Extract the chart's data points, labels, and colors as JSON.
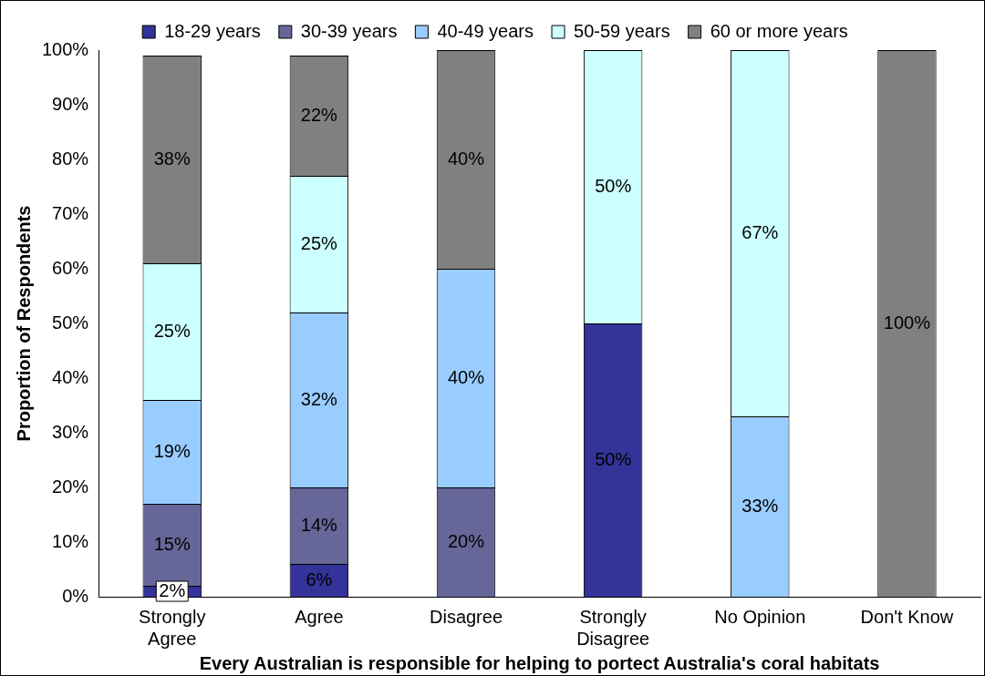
{
  "chart_data": {
    "type": "bar",
    "stacked": true,
    "xlabel": "Every Australian is responsible for helping to portect Australia's coral habitats",
    "ylabel": "Proportion of Respondents",
    "categories": [
      "Strongly Agree",
      "Agree",
      "Disagree",
      "Strongly Disagree",
      "No Opinion",
      "Don't Know"
    ],
    "series": [
      {
        "name": "18-29 years",
        "color": "#333399",
        "values": [
          2,
          6,
          null,
          50,
          null,
          null
        ],
        "value_labels": [
          "2%",
          "6%",
          null,
          "50%",
          null,
          null
        ]
      },
      {
        "name": "30-39 years",
        "color": "#666699",
        "values": [
          15,
          14,
          20,
          null,
          null,
          null
        ],
        "value_labels": [
          "15%",
          "14%",
          "20%",
          null,
          null,
          null
        ]
      },
      {
        "name": "40-49 years",
        "color": "#99ccff",
        "values": [
          19,
          32,
          40,
          null,
          33,
          null
        ],
        "value_labels": [
          "19%",
          "32%",
          "40%",
          null,
          "33%",
          null
        ]
      },
      {
        "name": "50-59 years",
        "color": "#ccffff",
        "values": [
          25,
          25,
          null,
          50,
          67,
          null
        ],
        "value_labels": [
          "25%",
          "25%",
          null,
          "50%",
          "67%",
          null
        ]
      },
      {
        "name": "60 or more years",
        "color": "#808080",
        "values": [
          38,
          22,
          40,
          null,
          null,
          100
        ],
        "value_labels": [
          "38%",
          "22%",
          "40%",
          null,
          null,
          "100%"
        ]
      }
    ],
    "ylim": [
      0,
      100
    ],
    "yticks": [
      {
        "value": 0,
        "label": "0%"
      },
      {
        "value": 10,
        "label": "10%"
      },
      {
        "value": 20,
        "label": "20%"
      },
      {
        "value": 30,
        "label": "30%"
      },
      {
        "value": 40,
        "label": "40%"
      },
      {
        "value": 50,
        "label": "50%"
      },
      {
        "value": 60,
        "label": "60%"
      },
      {
        "value": 70,
        "label": "70%"
      },
      {
        "value": 80,
        "label": "80%"
      },
      {
        "value": 90,
        "label": "90%"
      },
      {
        "value": 100,
        "label": "100%"
      }
    ],
    "grid": false,
    "legend": "top"
  }
}
